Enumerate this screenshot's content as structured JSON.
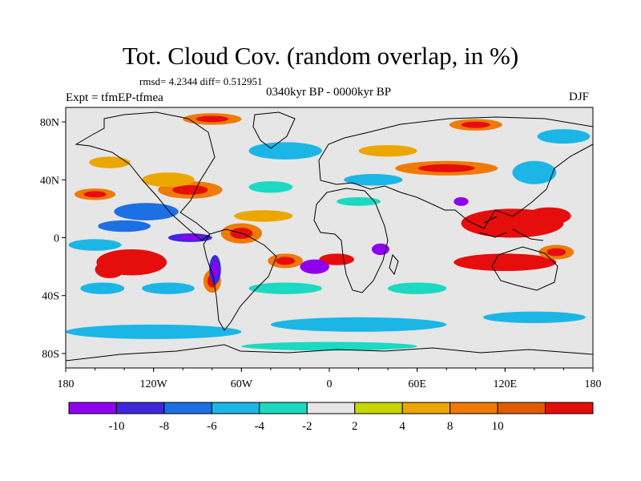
{
  "chart_data": {
    "type": "heatmap",
    "title": "Tot. Cloud Cov. (random overlap, in %)",
    "stats_text": "rmsd= 4.2344  diff= 0.512951",
    "experiment": "Expt = tfmEP-tfmea",
    "period": "0340kyr BP - 0000kyr BP",
    "season": "DJF",
    "x_ticks": [
      "180",
      "120W",
      "60W",
      "0",
      "60E",
      "120E",
      "180"
    ],
    "y_ticks": [
      "80N",
      "40N",
      "0",
      "40S",
      "80S"
    ],
    "x_range": [
      -180,
      180
    ],
    "y_range": [
      -90,
      90
    ],
    "colorbar": {
      "labels": [
        "-10",
        "-8",
        "-6",
        "-4",
        "-2",
        "2",
        "4",
        "8",
        "10"
      ],
      "colors": [
        "#8f00ef",
        "#3f27dc",
        "#1c70e4",
        "#1cb6e6",
        "#1cd9c2",
        "#e6e6e6",
        "#c8d600",
        "#eba600",
        "#ef7a06",
        "#e25b00",
        "#e60d0d"
      ]
    },
    "regions": [
      {
        "lon": -135,
        "lat": -17,
        "rx": 24,
        "ry": 9,
        "level": 10
      },
      {
        "lon": -150,
        "lat": -22,
        "rx": 10,
        "ry": 6,
        "level": 10
      },
      {
        "lon": -160,
        "lat": 30,
        "rx": 14,
        "ry": 4,
        "level": 8
      },
      {
        "lon": -95,
        "lat": 33,
        "rx": 22,
        "ry": 6,
        "level": 8
      },
      {
        "lon": -60,
        "lat": 3,
        "rx": 14,
        "ry": 7,
        "level": 8
      },
      {
        "lon": -30,
        "lat": -16,
        "rx": 12,
        "ry": 5,
        "level": 8
      },
      {
        "lon": 5,
        "lat": -15,
        "rx": 12,
        "ry": 4,
        "level": 10
      },
      {
        "lon": -80,
        "lat": -30,
        "rx": 6,
        "ry": 8,
        "level": 8
      },
      {
        "lon": 80,
        "lat": 48,
        "rx": 35,
        "ry": 5,
        "level": 8
      },
      {
        "lon": 125,
        "lat": 10,
        "rx": 35,
        "ry": 10,
        "level": 10
      },
      {
        "lon": 150,
        "lat": 15,
        "rx": 15,
        "ry": 6,
        "level": 10
      },
      {
        "lon": 120,
        "lat": -17,
        "rx": 35,
        "ry": 6,
        "level": 10
      },
      {
        "lon": 155,
        "lat": -10,
        "rx": 12,
        "ry": 5,
        "level": 8
      },
      {
        "lon": -150,
        "lat": 52,
        "rx": 14,
        "ry": 4,
        "level": 4
      },
      {
        "lon": -110,
        "lat": 40,
        "rx": 18,
        "ry": 5,
        "level": 4
      },
      {
        "lon": -45,
        "lat": 15,
        "rx": 20,
        "ry": 4,
        "level": 4
      },
      {
        "lon": 40,
        "lat": 60,
        "rx": 20,
        "ry": 4,
        "level": 4
      },
      {
        "lon": -80,
        "lat": 82,
        "rx": 20,
        "ry": 4,
        "level": 8
      },
      {
        "lon": 100,
        "lat": 78,
        "rx": 18,
        "ry": 4,
        "level": 8
      },
      {
        "lon": -140,
        "lat": 8,
        "rx": 18,
        "ry": 4,
        "level": -6
      },
      {
        "lon": -125,
        "lat": 18,
        "rx": 22,
        "ry": 6,
        "level": -6
      },
      {
        "lon": -95,
        "lat": 0,
        "rx": 15,
        "ry": 3,
        "level": -8
      },
      {
        "lon": -78,
        "lat": -22,
        "rx": 4,
        "ry": 10,
        "level": -8
      },
      {
        "lon": -10,
        "lat": -20,
        "rx": 10,
        "ry": 5,
        "level": -10
      },
      {
        "lon": 35,
        "lat": -8,
        "rx": 6,
        "ry": 4,
        "level": -10
      },
      {
        "lon": 90,
        "lat": 25,
        "rx": 5,
        "ry": 3,
        "level": -10
      },
      {
        "lon": -155,
        "lat": -35,
        "rx": 15,
        "ry": 4,
        "level": -4
      },
      {
        "lon": -110,
        "lat": -35,
        "rx": 18,
        "ry": 4,
        "level": -4
      },
      {
        "lon": -30,
        "lat": 60,
        "rx": 25,
        "ry": 6,
        "level": -4
      },
      {
        "lon": 30,
        "lat": 40,
        "rx": 20,
        "ry": 4,
        "level": -4
      },
      {
        "lon": -120,
        "lat": -65,
        "rx": 60,
        "ry": 5,
        "level": -4
      },
      {
        "lon": 20,
        "lat": -60,
        "rx": 60,
        "ry": 5,
        "level": -4
      },
      {
        "lon": 140,
        "lat": -55,
        "rx": 35,
        "ry": 4,
        "level": -4
      },
      {
        "lon": 140,
        "lat": 45,
        "rx": 15,
        "ry": 8,
        "level": -4
      },
      {
        "lon": 160,
        "lat": 70,
        "rx": 18,
        "ry": 5,
        "level": -4
      },
      {
        "lon": -160,
        "lat": -5,
        "rx": 18,
        "ry": 4,
        "level": -4
      },
      {
        "lon": -40,
        "lat": 35,
        "rx": 15,
        "ry": 4,
        "level": -2
      },
      {
        "lon": 20,
        "lat": 25,
        "rx": 15,
        "ry": 3,
        "level": -2
      },
      {
        "lon": -30,
        "lat": -35,
        "rx": 25,
        "ry": 4,
        "level": -2
      },
      {
        "lon": 60,
        "lat": -35,
        "rx": 20,
        "ry": 4,
        "level": -2
      },
      {
        "lon": 0,
        "lat": -75,
        "rx": 60,
        "ry": 3,
        "level": -2
      }
    ]
  }
}
